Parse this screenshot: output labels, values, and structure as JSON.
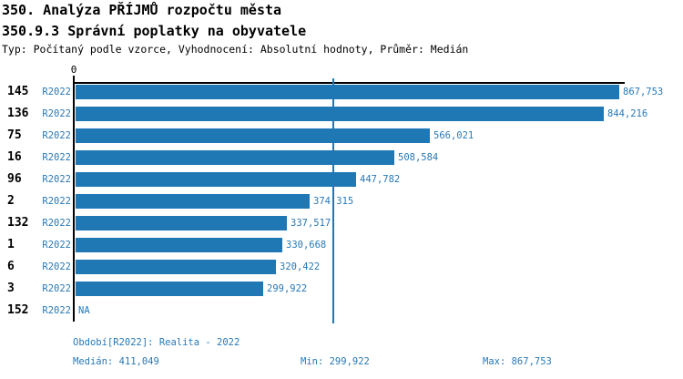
{
  "header": {
    "title_line1": "350. Analýza PŘÍJMŮ rozpočtu města",
    "title_line2": "350.9.3 Správní poplatky na obyvatele",
    "subtitle": "Typ: Počítaný podle vzorce, Vyhodnocení: Absolutní hodnoty, Průměr: Medián"
  },
  "colors": {
    "bar_blue": "#1f77b4",
    "text_blue": "#2878b4",
    "axis_black": "#000000",
    "background": "#ffffff"
  },
  "chart_data": {
    "type": "bar",
    "orientation": "horizontal",
    "title": "350.9.3 Správní poplatky na obyvatele",
    "x_axis": {
      "zero_tick_label": "0",
      "min": 0,
      "max_bar_value": 867753,
      "gridlines": false
    },
    "categories": [
      "145",
      "136",
      "75",
      "16",
      "96",
      "2",
      "132",
      "1",
      "6",
      "3",
      "152"
    ],
    "period_label": "R2022",
    "series": [
      {
        "name": "R2022",
        "values": [
          867753,
          844216,
          566021,
          508584,
          447782,
          374315,
          337517,
          330668,
          320422,
          299922,
          null
        ]
      }
    ],
    "value_labels": [
      "867,753",
      "844,216",
      "566,021",
      "508,584",
      "447,782",
      "374,315",
      "337,517",
      "330,668",
      "320,422",
      "299,922",
      "NA"
    ],
    "median_value": 411049,
    "median_line": true,
    "min_value": 299922,
    "max_value": 867753
  },
  "footer": {
    "period": "Období[R2022]: Realita - 2022",
    "median": "Medián: 411,049",
    "min": "Min: 299,922",
    "max": "Max: 867,753"
  }
}
